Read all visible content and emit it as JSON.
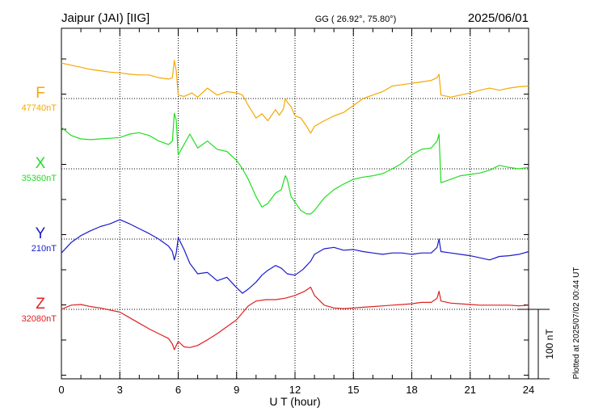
{
  "header": {
    "station": "Jaipur (JAI)  [IIG]",
    "coords": "GG ( 26.92°,  75.80°)",
    "date": "2025/06/01"
  },
  "side_note": "Plotted at 2025/07/02 00:44 UT",
  "chart_data": {
    "type": "line",
    "title": "Jaipur (JAI)  [IIG]",
    "xlabel": "U T (hour)",
    "xlim": [
      0,
      24
    ],
    "xticks": [
      0,
      3,
      6,
      9,
      12,
      15,
      18,
      21,
      24
    ],
    "xtick_labels": [
      "0",
      "3",
      "6",
      "9",
      "12",
      "15",
      "18",
      "21",
      "24"
    ],
    "scale_bar": {
      "label": "100 nT",
      "value_nT": 100
    },
    "grid": "dotted baselines at 3-hour intervals",
    "series": [
      {
        "name": "F",
        "baseline_label": "47740nT",
        "baseline_nT": 47740,
        "color": "#f5a800",
        "points": [
          [
            0,
            47791
          ],
          [
            0.5,
            47788
          ],
          [
            1,
            47785
          ],
          [
            1.5,
            47782
          ],
          [
            2,
            47780
          ],
          [
            2.5,
            47778
          ],
          [
            3,
            47777
          ],
          [
            3.5,
            47775
          ],
          [
            4,
            47774
          ],
          [
            4.5,
            47774
          ],
          [
            5,
            47770
          ],
          [
            5.5,
            47768
          ],
          [
            5.7,
            47770
          ],
          [
            5.8,
            47795
          ],
          [
            5.9,
            47780
          ],
          [
            6,
            47745
          ],
          [
            6.3,
            47743
          ],
          [
            6.7,
            47748
          ],
          [
            7,
            47742
          ],
          [
            7.5,
            47755
          ],
          [
            8,
            47745
          ],
          [
            8.5,
            47750
          ],
          [
            9,
            47748
          ],
          [
            9.3,
            47745
          ],
          [
            9.6,
            47730
          ],
          [
            10,
            47712
          ],
          [
            10.3,
            47718
          ],
          [
            10.6,
            47708
          ],
          [
            11,
            47724
          ],
          [
            11.2,
            47716
          ],
          [
            11.4,
            47725
          ],
          [
            11.5,
            47740
          ],
          [
            11.6,
            47735
          ],
          [
            11.8,
            47728
          ],
          [
            12,
            47715
          ],
          [
            12.3,
            47712
          ],
          [
            12.6,
            47700
          ],
          [
            12.8,
            47690
          ],
          [
            13,
            47700
          ],
          [
            13.5,
            47708
          ],
          [
            14,
            47715
          ],
          [
            14.5,
            47720
          ],
          [
            15,
            47730
          ],
          [
            15.5,
            47740
          ],
          [
            16,
            47745
          ],
          [
            16.5,
            47750
          ],
          [
            17,
            47758
          ],
          [
            17.5,
            47760
          ],
          [
            18,
            47762
          ],
          [
            18.5,
            47764
          ],
          [
            19,
            47766
          ],
          [
            19.3,
            47770
          ],
          [
            19.4,
            47775
          ],
          [
            19.5,
            47745
          ],
          [
            20,
            47742
          ],
          [
            20.5,
            47745
          ],
          [
            21,
            47748
          ],
          [
            21.5,
            47752
          ],
          [
            22,
            47755
          ],
          [
            22.5,
            47752
          ],
          [
            23,
            47755
          ],
          [
            23.5,
            47757
          ],
          [
            24,
            47758
          ]
        ]
      },
      {
        "name": "X",
        "baseline_label": "35360nT",
        "baseline_nT": 35360,
        "color": "#22dd22",
        "points": [
          [
            0,
            35420
          ],
          [
            0.5,
            35408
          ],
          [
            1,
            35403
          ],
          [
            1.5,
            35402
          ],
          [
            2,
            35403
          ],
          [
            2.5,
            35404
          ],
          [
            3,
            35405
          ],
          [
            3.5,
            35410
          ],
          [
            4,
            35412
          ],
          [
            4.5,
            35408
          ],
          [
            5,
            35400
          ],
          [
            5.5,
            35395
          ],
          [
            5.7,
            35400
          ],
          [
            5.8,
            35440
          ],
          [
            5.9,
            35430
          ],
          [
            6,
            35380
          ],
          [
            6.3,
            35395
          ],
          [
            6.6,
            35410
          ],
          [
            7,
            35390
          ],
          [
            7.5,
            35400
          ],
          [
            8,
            35388
          ],
          [
            8.5,
            35385
          ],
          [
            9,
            35372
          ],
          [
            9.3,
            35360
          ],
          [
            9.6,
            35345
          ],
          [
            10,
            35320
          ],
          [
            10.3,
            35305
          ],
          [
            10.6,
            35310
          ],
          [
            11,
            35325
          ],
          [
            11.3,
            35330
          ],
          [
            11.5,
            35350
          ],
          [
            11.6,
            35345
          ],
          [
            11.8,
            35320
          ],
          [
            12,
            35312
          ],
          [
            12.3,
            35300
          ],
          [
            12.6,
            35295
          ],
          [
            12.8,
            35295
          ],
          [
            13,
            35300
          ],
          [
            13.5,
            35318
          ],
          [
            14,
            35330
          ],
          [
            14.5,
            35338
          ],
          [
            15,
            35345
          ],
          [
            15.5,
            35348
          ],
          [
            16,
            35350
          ],
          [
            16.5,
            35353
          ],
          [
            17,
            35360
          ],
          [
            17.5,
            35368
          ],
          [
            18,
            35380
          ],
          [
            18.5,
            35388
          ],
          [
            19,
            35390
          ],
          [
            19.3,
            35400
          ],
          [
            19.4,
            35410
          ],
          [
            19.5,
            35340
          ],
          [
            20,
            35345
          ],
          [
            20.5,
            35350
          ],
          [
            21,
            35352
          ],
          [
            21.5,
            35354
          ],
          [
            22,
            35358
          ],
          [
            22.5,
            35365
          ],
          [
            23,
            35362
          ],
          [
            23.5,
            35360
          ],
          [
            24,
            35362
          ]
        ]
      },
      {
        "name": "Y",
        "baseline_label": "210nT",
        "baseline_nT": 210,
        "color": "#1a1ad0",
        "points": [
          [
            0,
            190
          ],
          [
            0.5,
            205
          ],
          [
            1,
            215
          ],
          [
            1.5,
            222
          ],
          [
            2,
            228
          ],
          [
            2.5,
            232
          ],
          [
            3,
            238
          ],
          [
            3.5,
            232
          ],
          [
            4,
            225
          ],
          [
            4.5,
            218
          ],
          [
            5,
            210
          ],
          [
            5.5,
            200
          ],
          [
            5.7,
            192
          ],
          [
            5.8,
            180
          ],
          [
            5.9,
            190
          ],
          [
            6,
            212
          ],
          [
            6.3,
            195
          ],
          [
            6.6,
            175
          ],
          [
            7,
            160
          ],
          [
            7.5,
            162
          ],
          [
            8,
            150
          ],
          [
            8.5,
            155
          ],
          [
            9,
            140
          ],
          [
            9.3,
            132
          ],
          [
            9.6,
            138
          ],
          [
            10,
            148
          ],
          [
            10.3,
            158
          ],
          [
            10.6,
            165
          ],
          [
            11,
            172
          ],
          [
            11.3,
            168
          ],
          [
            11.6,
            160
          ],
          [
            12,
            158
          ],
          [
            12.4,
            166
          ],
          [
            12.8,
            178
          ],
          [
            13,
            188
          ],
          [
            13.5,
            196
          ],
          [
            14,
            198
          ],
          [
            14.5,
            194
          ],
          [
            15,
            195
          ],
          [
            15.5,
            192
          ],
          [
            16,
            190
          ],
          [
            16.5,
            188
          ],
          [
            17,
            190
          ],
          [
            17.5,
            190
          ],
          [
            18,
            188
          ],
          [
            18.5,
            190
          ],
          [
            19,
            190
          ],
          [
            19.3,
            198
          ],
          [
            19.4,
            210
          ],
          [
            19.5,
            192
          ],
          [
            20,
            190
          ],
          [
            20.5,
            188
          ],
          [
            21,
            186
          ],
          [
            21.5,
            183
          ],
          [
            22,
            180
          ],
          [
            22.5,
            185
          ],
          [
            23,
            186
          ],
          [
            23.5,
            188
          ],
          [
            24,
            192
          ]
        ]
      },
      {
        "name": "Z",
        "baseline_label": "32080nT",
        "baseline_nT": 32080,
        "color": "#e02020",
        "points": [
          [
            0,
            32080
          ],
          [
            0.5,
            32086
          ],
          [
            1,
            32087
          ],
          [
            1.5,
            32084
          ],
          [
            2,
            32082
          ],
          [
            2.5,
            32079
          ],
          [
            3,
            32076
          ],
          [
            3.5,
            32068
          ],
          [
            4,
            32060
          ],
          [
            4.5,
            32052
          ],
          [
            5,
            32045
          ],
          [
            5.5,
            32038
          ],
          [
            5.7,
            32030
          ],
          [
            5.8,
            32022
          ],
          [
            5.9,
            32028
          ],
          [
            6,
            32034
          ],
          [
            6.3,
            32026
          ],
          [
            6.6,
            32025
          ],
          [
            7,
            32028
          ],
          [
            7.5,
            32036
          ],
          [
            8,
            32045
          ],
          [
            8.5,
            32055
          ],
          [
            9,
            32065
          ],
          [
            9.3,
            32075
          ],
          [
            9.6,
            32085
          ],
          [
            10,
            32092
          ],
          [
            10.5,
            32094
          ],
          [
            11,
            32094
          ],
          [
            11.5,
            32096
          ],
          [
            12,
            32100
          ],
          [
            12.5,
            32106
          ],
          [
            12.8,
            32112
          ],
          [
            13,
            32100
          ],
          [
            13.5,
            32086
          ],
          [
            14,
            32082
          ],
          [
            14.5,
            32081
          ],
          [
            15,
            32082
          ],
          [
            15.5,
            32083
          ],
          [
            16,
            32084
          ],
          [
            16.5,
            32085
          ],
          [
            17,
            32086
          ],
          [
            17.5,
            32087
          ],
          [
            18,
            32088
          ],
          [
            18.5,
            32090
          ],
          [
            19,
            32090
          ],
          [
            19.3,
            32096
          ],
          [
            19.4,
            32106
          ],
          [
            19.5,
            32092
          ],
          [
            20,
            32089
          ],
          [
            20.5,
            32088
          ],
          [
            21,
            32087
          ],
          [
            21.5,
            32086
          ],
          [
            22,
            32086
          ],
          [
            22.5,
            32086
          ],
          [
            23,
            32086
          ],
          [
            23.5,
            32085
          ],
          [
            24,
            32086
          ]
        ]
      }
    ]
  }
}
